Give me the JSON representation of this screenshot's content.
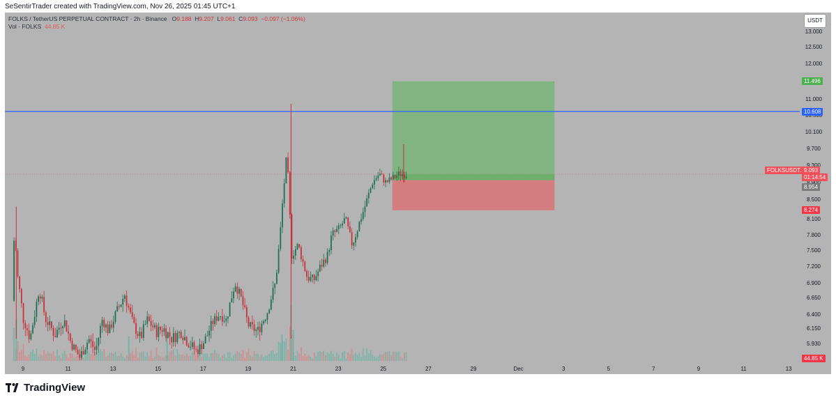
{
  "credit": "SeSentirTrader created with TradingView.com, Nov 26, 2025 01:45 UTC+1",
  "legend": {
    "symbol": "FOLKS / TetherUS PERPETUAL CONTRACT · 2h · Binance",
    "o_label": "O",
    "o_value": "9.188",
    "h_label": "H",
    "h_value": "9.207",
    "l_label": "L",
    "l_value": "9.061",
    "c_label": "C",
    "c_value": "9.093",
    "change": "−0.097 (−1.06%)",
    "vol_label": "Vol · FOLKS",
    "vol_value": "44.85 K"
  },
  "currency_button": "USDT",
  "brand": "TradingView",
  "price_tags": {
    "target": "11.496",
    "line": "10.608",
    "symbol_tag": "FOLKSUSDT.P",
    "last": "9.093",
    "countdown": "01:14:54",
    "entry": "8.954",
    "stop": "8.274",
    "volume": "44.85 K"
  },
  "colors": {
    "background": "#b4b4b4",
    "profit_zone": "#81b481",
    "loss_zone": "#d37d81",
    "up_candle": "#1f6f52",
    "down_candle": "#c8303a",
    "level_line": "#2962ff",
    "target_tag": "#4caf50",
    "stop_tag": "#f23645",
    "entry_tag": "#7b7b7b",
    "last_tag": "#f0505a"
  },
  "chart_data": {
    "type": "candlestick",
    "interval": "2h",
    "y_axis_ticks": [
      13.0,
      12.5,
      12.0,
      11.0,
      10.5,
      10.1,
      9.7,
      9.3,
      8.9,
      8.5,
      8.1,
      7.8,
      7.5,
      7.2,
      6.9,
      6.65,
      6.4,
      6.15,
      5.93
    ],
    "y_axis_labels": [
      "13.000",
      "12.500",
      "12.000",
      "11.000",
      "10.500",
      "10.100",
      "9.700",
      "9.300",
      "8.900",
      "8.500",
      "8.100",
      "7.800",
      "7.500",
      "7.200",
      "6.900",
      "6.650",
      "6.400",
      "6.150",
      "5.930"
    ],
    "x_axis_labels": [
      "9",
      "11",
      "13",
      "15",
      "17",
      "19",
      "21",
      "23",
      "25",
      "27",
      "29",
      "Dec",
      "3",
      "5",
      "7",
      "9",
      "11",
      "13"
    ],
    "horizontal_level": 10.608,
    "position": {
      "entry": 8.954,
      "target": 11.496,
      "stop": 8.274
    },
    "last_price": 9.093,
    "last_volume": "44.85K",
    "price_path": [
      {
        "day": 8.6,
        "price": 6.6
      },
      {
        "day": 8.7,
        "price": 7.9
      },
      {
        "day": 8.85,
        "price": 7.0
      },
      {
        "day": 9.1,
        "price": 6.3
      },
      {
        "day": 9.4,
        "price": 6.0
      },
      {
        "day": 9.8,
        "price": 6.8
      },
      {
        "day": 10.1,
        "price": 6.3
      },
      {
        "day": 10.5,
        "price": 6.05
      },
      {
        "day": 10.9,
        "price": 6.3
      },
      {
        "day": 11.2,
        "price": 5.95
      },
      {
        "day": 11.6,
        "price": 5.7
      },
      {
        "day": 12.0,
        "price": 6.0
      },
      {
        "day": 12.3,
        "price": 5.8
      },
      {
        "day": 12.6,
        "price": 6.3
      },
      {
        "day": 12.9,
        "price": 6.1
      },
      {
        "day": 13.2,
        "price": 6.4
      },
      {
        "day": 13.6,
        "price": 6.7
      },
      {
        "day": 14.0,
        "price": 6.2
      },
      {
        "day": 14.3,
        "price": 6.0
      },
      {
        "day": 14.6,
        "price": 6.3
      },
      {
        "day": 15.0,
        "price": 6.1
      },
      {
        "day": 15.3,
        "price": 6.15
      },
      {
        "day": 15.7,
        "price": 6.0
      },
      {
        "day": 16.1,
        "price": 6.1
      },
      {
        "day": 16.4,
        "price": 5.95
      },
      {
        "day": 16.8,
        "price": 5.8
      },
      {
        "day": 17.2,
        "price": 6.0
      },
      {
        "day": 17.5,
        "price": 6.25
      },
      {
        "day": 17.8,
        "price": 6.4
      },
      {
        "day": 18.1,
        "price": 6.3
      },
      {
        "day": 18.5,
        "price": 6.9
      },
      {
        "day": 18.8,
        "price": 6.6
      },
      {
        "day": 19.1,
        "price": 6.2
      },
      {
        "day": 19.5,
        "price": 6.1
      },
      {
        "day": 19.9,
        "price": 6.4
      },
      {
        "day": 20.3,
        "price": 6.9
      },
      {
        "day": 20.5,
        "price": 7.8
      },
      {
        "day": 20.8,
        "price": 9.6
      },
      {
        "day": 21.0,
        "price": 7.4
      },
      {
        "day": 21.3,
        "price": 7.6
      },
      {
        "day": 21.7,
        "price": 7.0
      },
      {
        "day": 22.0,
        "price": 6.95
      },
      {
        "day": 22.3,
        "price": 7.2
      },
      {
        "day": 22.6,
        "price": 7.4
      },
      {
        "day": 22.8,
        "price": 7.8
      },
      {
        "day": 23.1,
        "price": 7.9
      },
      {
        "day": 23.4,
        "price": 8.1
      },
      {
        "day": 23.7,
        "price": 7.6
      },
      {
        "day": 24.0,
        "price": 8.0
      },
      {
        "day": 24.3,
        "price": 8.4
      },
      {
        "day": 24.6,
        "price": 8.9
      },
      {
        "day": 24.9,
        "price": 9.1
      },
      {
        "day": 25.2,
        "price": 8.9
      },
      {
        "day": 25.5,
        "price": 9.0
      },
      {
        "day": 25.8,
        "price": 9.1
      },
      {
        "day": 26.05,
        "price": 9.09
      }
    ],
    "spikes": [
      {
        "day": 8.7,
        "high": 8.35,
        "low": 6.0
      },
      {
        "day": 20.9,
        "high": 10.85,
        "low": 6.0
      },
      {
        "day": 25.9,
        "high": 9.8,
        "low": 8.9
      }
    ]
  }
}
